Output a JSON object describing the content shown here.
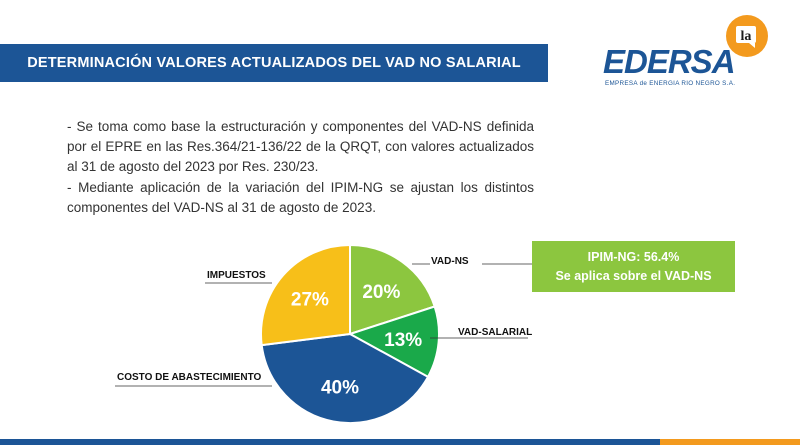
{
  "header": {
    "title": "DETERMINACIÓN VALORES ACTUALIZADOS DEL VAD NO SALARIAL"
  },
  "logo": {
    "word": "EDERSA",
    "subtitle": "EMPRESA de ENERGIA RIO NEGRO S.A."
  },
  "badge": {
    "text": "la",
    "color": "#f39a1e"
  },
  "body": {
    "paragraph_1": "- Se toma como base la estructuración y componentes del VAD-NS definida por el EPRE en las Res.364/21-136/22 de la QRQT, con valores actualizados al 31 de agosto del 2023 por Res. 230/23.",
    "paragraph_2": "- Mediante aplicación de la variación del IPIM-NG se ajustan los distintos componentes del VAD-NS al 31 de agosto de 2023."
  },
  "callout": {
    "line1": "IPIM-NG: 56.4%",
    "line2": "Se aplica sobre el VAD-NS"
  },
  "chart_data": {
    "type": "pie",
    "slices": [
      {
        "label": "VAD-NS",
        "value": 20,
        "display": "20%",
        "color": "#8cc63f"
      },
      {
        "label": "VAD-SALARIAL",
        "value": 13,
        "display": "13%",
        "color": "#1aa94a"
      },
      {
        "label": "COSTO DE ABASTECIMIENTO",
        "value": 40,
        "display": "40%",
        "color": "#1c5596"
      },
      {
        "label": "IMPUESTOS",
        "value": 27,
        "display": "27%",
        "color": "#f7bf19"
      }
    ]
  },
  "colors": {
    "primary": "#1c5596",
    "accent": "#f39a1e"
  }
}
